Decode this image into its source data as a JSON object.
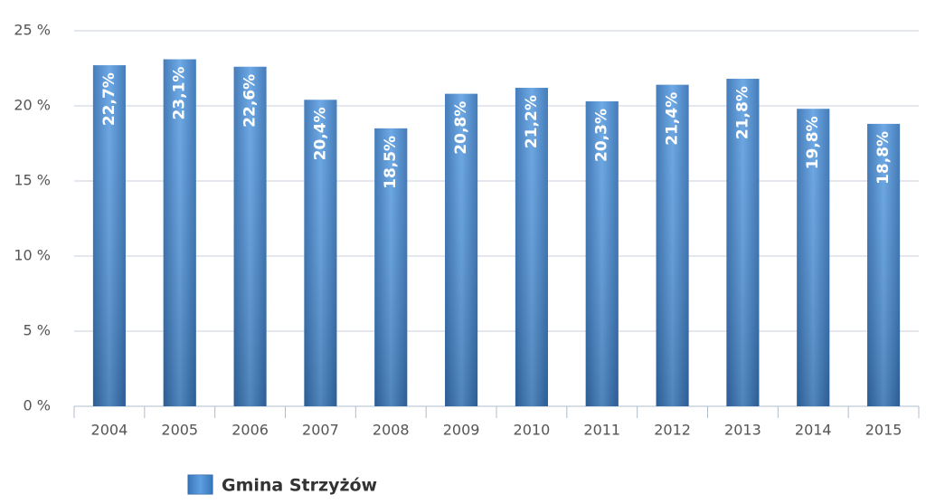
{
  "chart_data": {
    "type": "bar",
    "categories": [
      "2004",
      "2005",
      "2006",
      "2007",
      "2008",
      "2009",
      "2010",
      "2011",
      "2012",
      "2013",
      "2014",
      "2015"
    ],
    "series": [
      {
        "name": "Gmina Strzyżów",
        "color": "#4a8fd6",
        "values": [
          22.7,
          23.1,
          22.6,
          20.4,
          18.5,
          20.8,
          21.2,
          20.3,
          21.4,
          21.8,
          19.8,
          18.8
        ],
        "value_labels": [
          "22,7%",
          "23,1%",
          "22,6%",
          "20,4%",
          "18,5%",
          "20,8%",
          "21,2%",
          "20,3%",
          "21,4%",
          "21,8%",
          "19,8%",
          "18,8%"
        ]
      }
    ],
    "ylim": [
      0,
      25
    ],
    "yticks": [
      {
        "value": 0,
        "label": "0 %"
      },
      {
        "value": 5,
        "label": "5 %"
      },
      {
        "value": 10,
        "label": "10 %"
      },
      {
        "value": 15,
        "label": "15 %"
      },
      {
        "value": 20,
        "label": "20 %"
      },
      {
        "value": 25,
        "label": "25 %"
      }
    ],
    "grid": true
  }
}
